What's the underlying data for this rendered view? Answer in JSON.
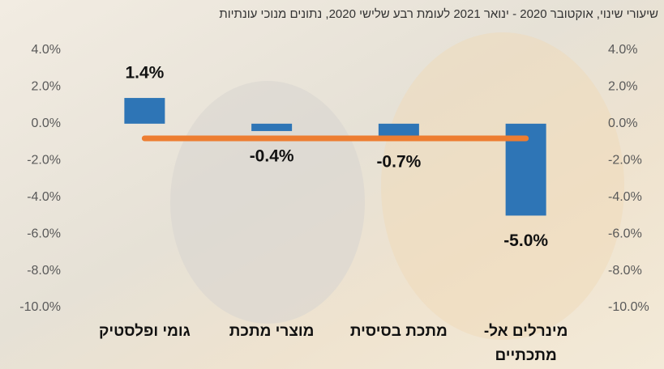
{
  "chart_data": {
    "type": "bar",
    "title": "שיעורי שינוי,  אוקטובר 2020 - ינואר 2021 לעומת רבע שלישי 2020, נתונים מנוכי עונתיות",
    "categories": [
      "גומי ופלסטיק",
      "מוצרי מתכת",
      "מתכת בסיסית",
      "מינרלים אל-מתכתיים"
    ],
    "series": [
      {
        "type": "bar",
        "color": "#2e75b6",
        "values": [
          1.4,
          -0.4,
          -0.7,
          -5.0
        ],
        "value_labels": [
          "1.4%",
          "-0.4%",
          "-0.7%",
          "-5.0%"
        ]
      },
      {
        "type": "line",
        "color": "#ed7d31",
        "values": [
          -0.8,
          -0.8,
          -0.8,
          -0.8
        ]
      }
    ],
    "ylim": [
      -10,
      4
    ],
    "yticks": [
      {
        "value": 4,
        "label": "4.0%"
      },
      {
        "value": 2,
        "label": "2.0%"
      },
      {
        "value": 0,
        "label": "0.0%"
      },
      {
        "value": -2,
        "label": "-2.0%"
      },
      {
        "value": -4,
        "label": "-4.0%"
      },
      {
        "value": -6,
        "label": "-6.0%"
      },
      {
        "value": -8,
        "label": "-8.0%"
      },
      {
        "value": -10,
        "label": "-10.0%"
      }
    ],
    "y2lim": [
      -10,
      4
    ],
    "y2ticks": [
      {
        "value": 4,
        "label": "4.0%"
      },
      {
        "value": 2,
        "label": "2.0%"
      },
      {
        "value": 0,
        "label": "0.0%"
      },
      {
        "value": -2,
        "label": "-2.0%"
      },
      {
        "value": -4,
        "label": "-4.0%"
      },
      {
        "value": -6,
        "label": "-6.0%"
      },
      {
        "value": -8,
        "label": "-8.0%"
      },
      {
        "value": -10,
        "label": "-10.0%"
      }
    ]
  }
}
